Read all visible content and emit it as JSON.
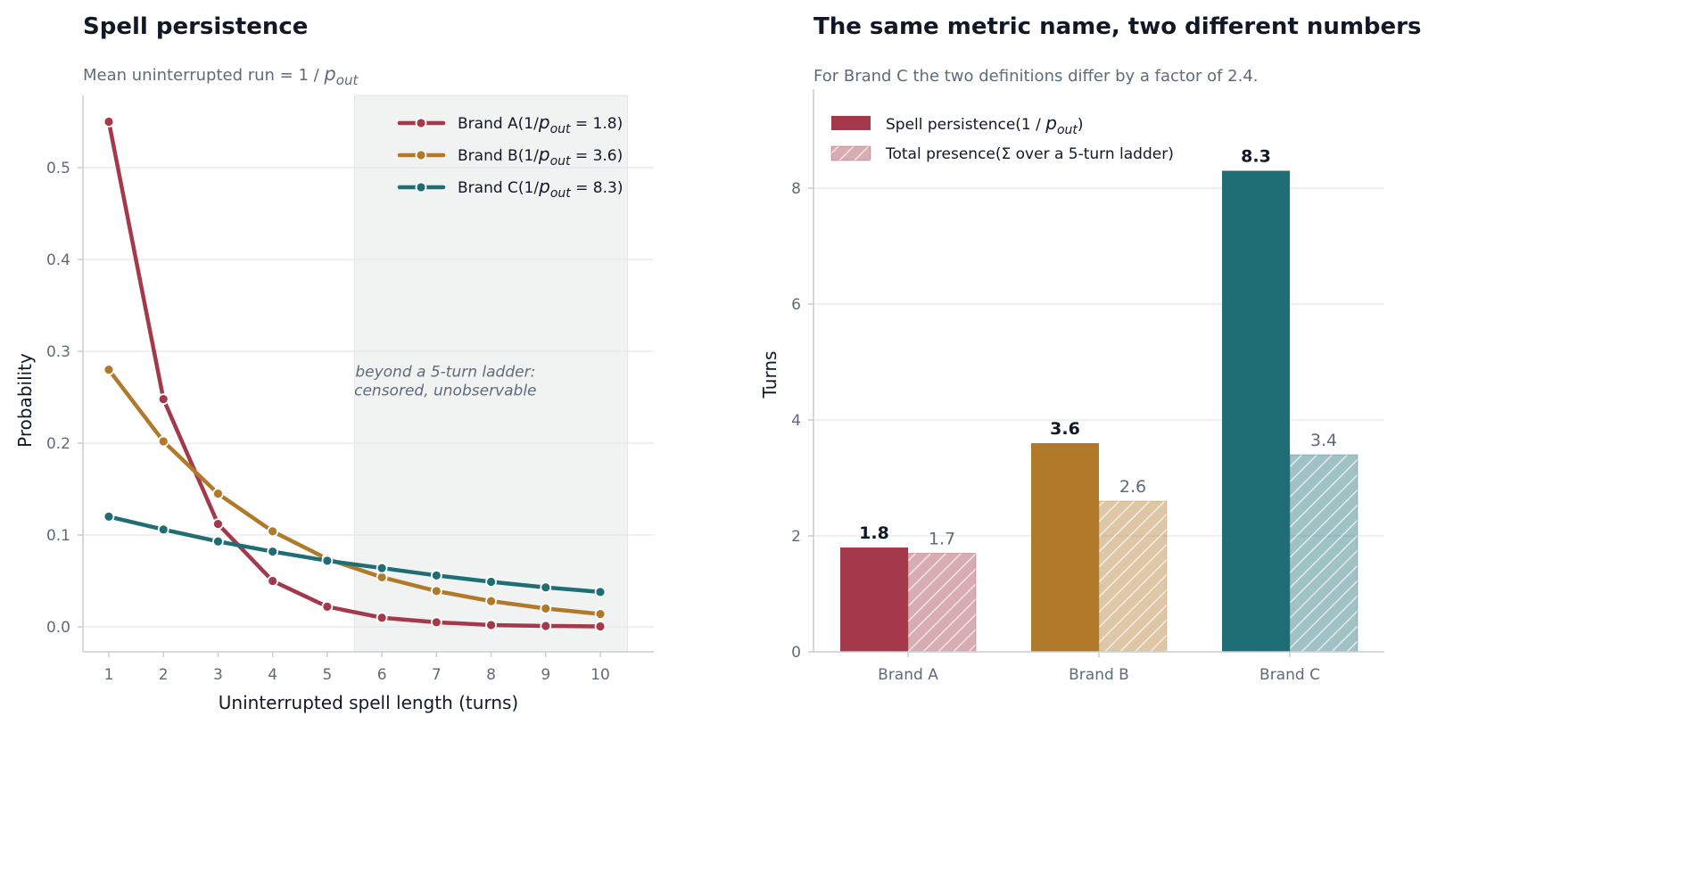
{
  "chart_data": [
    {
      "type": "line",
      "title": "Spell persistence",
      "subtitle_prefix": "Mean uninterrupted run = 1 / ",
      "subtitle_var": "p",
      "subtitle_sub": "out",
      "xlabel": "Uninterrupted spell length (turns)",
      "ylabel": "Probability",
      "x": [
        1,
        2,
        3,
        4,
        5,
        6,
        7,
        8,
        9,
        10
      ],
      "xlim": [
        0.5,
        10.5
      ],
      "ylim": [
        -0.027,
        0.58
      ],
      "yticks": [
        0.0,
        0.1,
        0.2,
        0.3,
        0.4,
        0.5
      ],
      "ytick_labels": [
        "0.0",
        "0.1",
        "0.2",
        "0.3",
        "0.4",
        "0.5"
      ],
      "grid": true,
      "legend_position": "top-right",
      "shaded_region": {
        "x_start": 5.5,
        "x_end": 10.5,
        "label_line1": "beyond a 5-turn ladder:",
        "label_line2": "censored, unobservable",
        "label_x": 7.0,
        "label_y": 0.283
      },
      "series": [
        {
          "name": "Brand A",
          "legend_pre": "(1/",
          "legend_var": "p",
          "legend_sub": "out",
          "legend_post": " = 1.8)",
          "color": "#a3394a",
          "values": [
            0.55,
            0.248,
            0.112,
            0.05,
            0.022,
            0.01,
            0.005,
            0.002,
            0.001,
            0.0005
          ]
        },
        {
          "name": "Brand B",
          "legend_pre": "(1/",
          "legend_var": "p",
          "legend_sub": "out",
          "legend_post": " = 3.6)",
          "color": "#b07a2a",
          "values": [
            0.28,
            0.202,
            0.145,
            0.104,
            0.074,
            0.054,
            0.039,
            0.028,
            0.02,
            0.014
          ]
        },
        {
          "name": "Brand C",
          "legend_pre": "(1/",
          "legend_var": "p",
          "legend_sub": "out",
          "legend_post": " = 8.3)",
          "color": "#1f6e75",
          "values": [
            0.12,
            0.106,
            0.093,
            0.082,
            0.072,
            0.064,
            0.056,
            0.049,
            0.043,
            0.038
          ]
        }
      ]
    },
    {
      "type": "bar",
      "title": "The same metric name, two different numbers",
      "subtitle": "For Brand C the two definitions differ by a factor of 2.4.",
      "xlabel": "",
      "ylabel": "Turns",
      "categories": [
        "Brand A",
        "Brand B",
        "Brand C"
      ],
      "category_colors": [
        "#a3394a",
        "#b07a2a",
        "#1f6e75"
      ],
      "ylim": [
        0,
        9.35
      ],
      "yticks": [
        0,
        2,
        4,
        6,
        8
      ],
      "ytick_labels": [
        "0",
        "2",
        "4",
        "6",
        "8"
      ],
      "grid": true,
      "legend_position": "top-left",
      "series": [
        {
          "name": "Spell persistence",
          "legend_pre": "(1 / ",
          "legend_var": "p",
          "legend_sub": "out",
          "legend_post": ")",
          "style": "solid",
          "values": [
            1.8,
            3.6,
            8.3
          ],
          "value_labels": [
            "1.8",
            "3.6",
            "8.3"
          ]
        },
        {
          "name": "Total presence",
          "legend_pre": "(Σ over a 5-turn ladder)",
          "style": "hatched",
          "values": [
            1.7,
            2.6,
            3.4
          ],
          "value_labels": [
            "1.7",
            "2.6",
            "3.4"
          ]
        }
      ]
    }
  ]
}
